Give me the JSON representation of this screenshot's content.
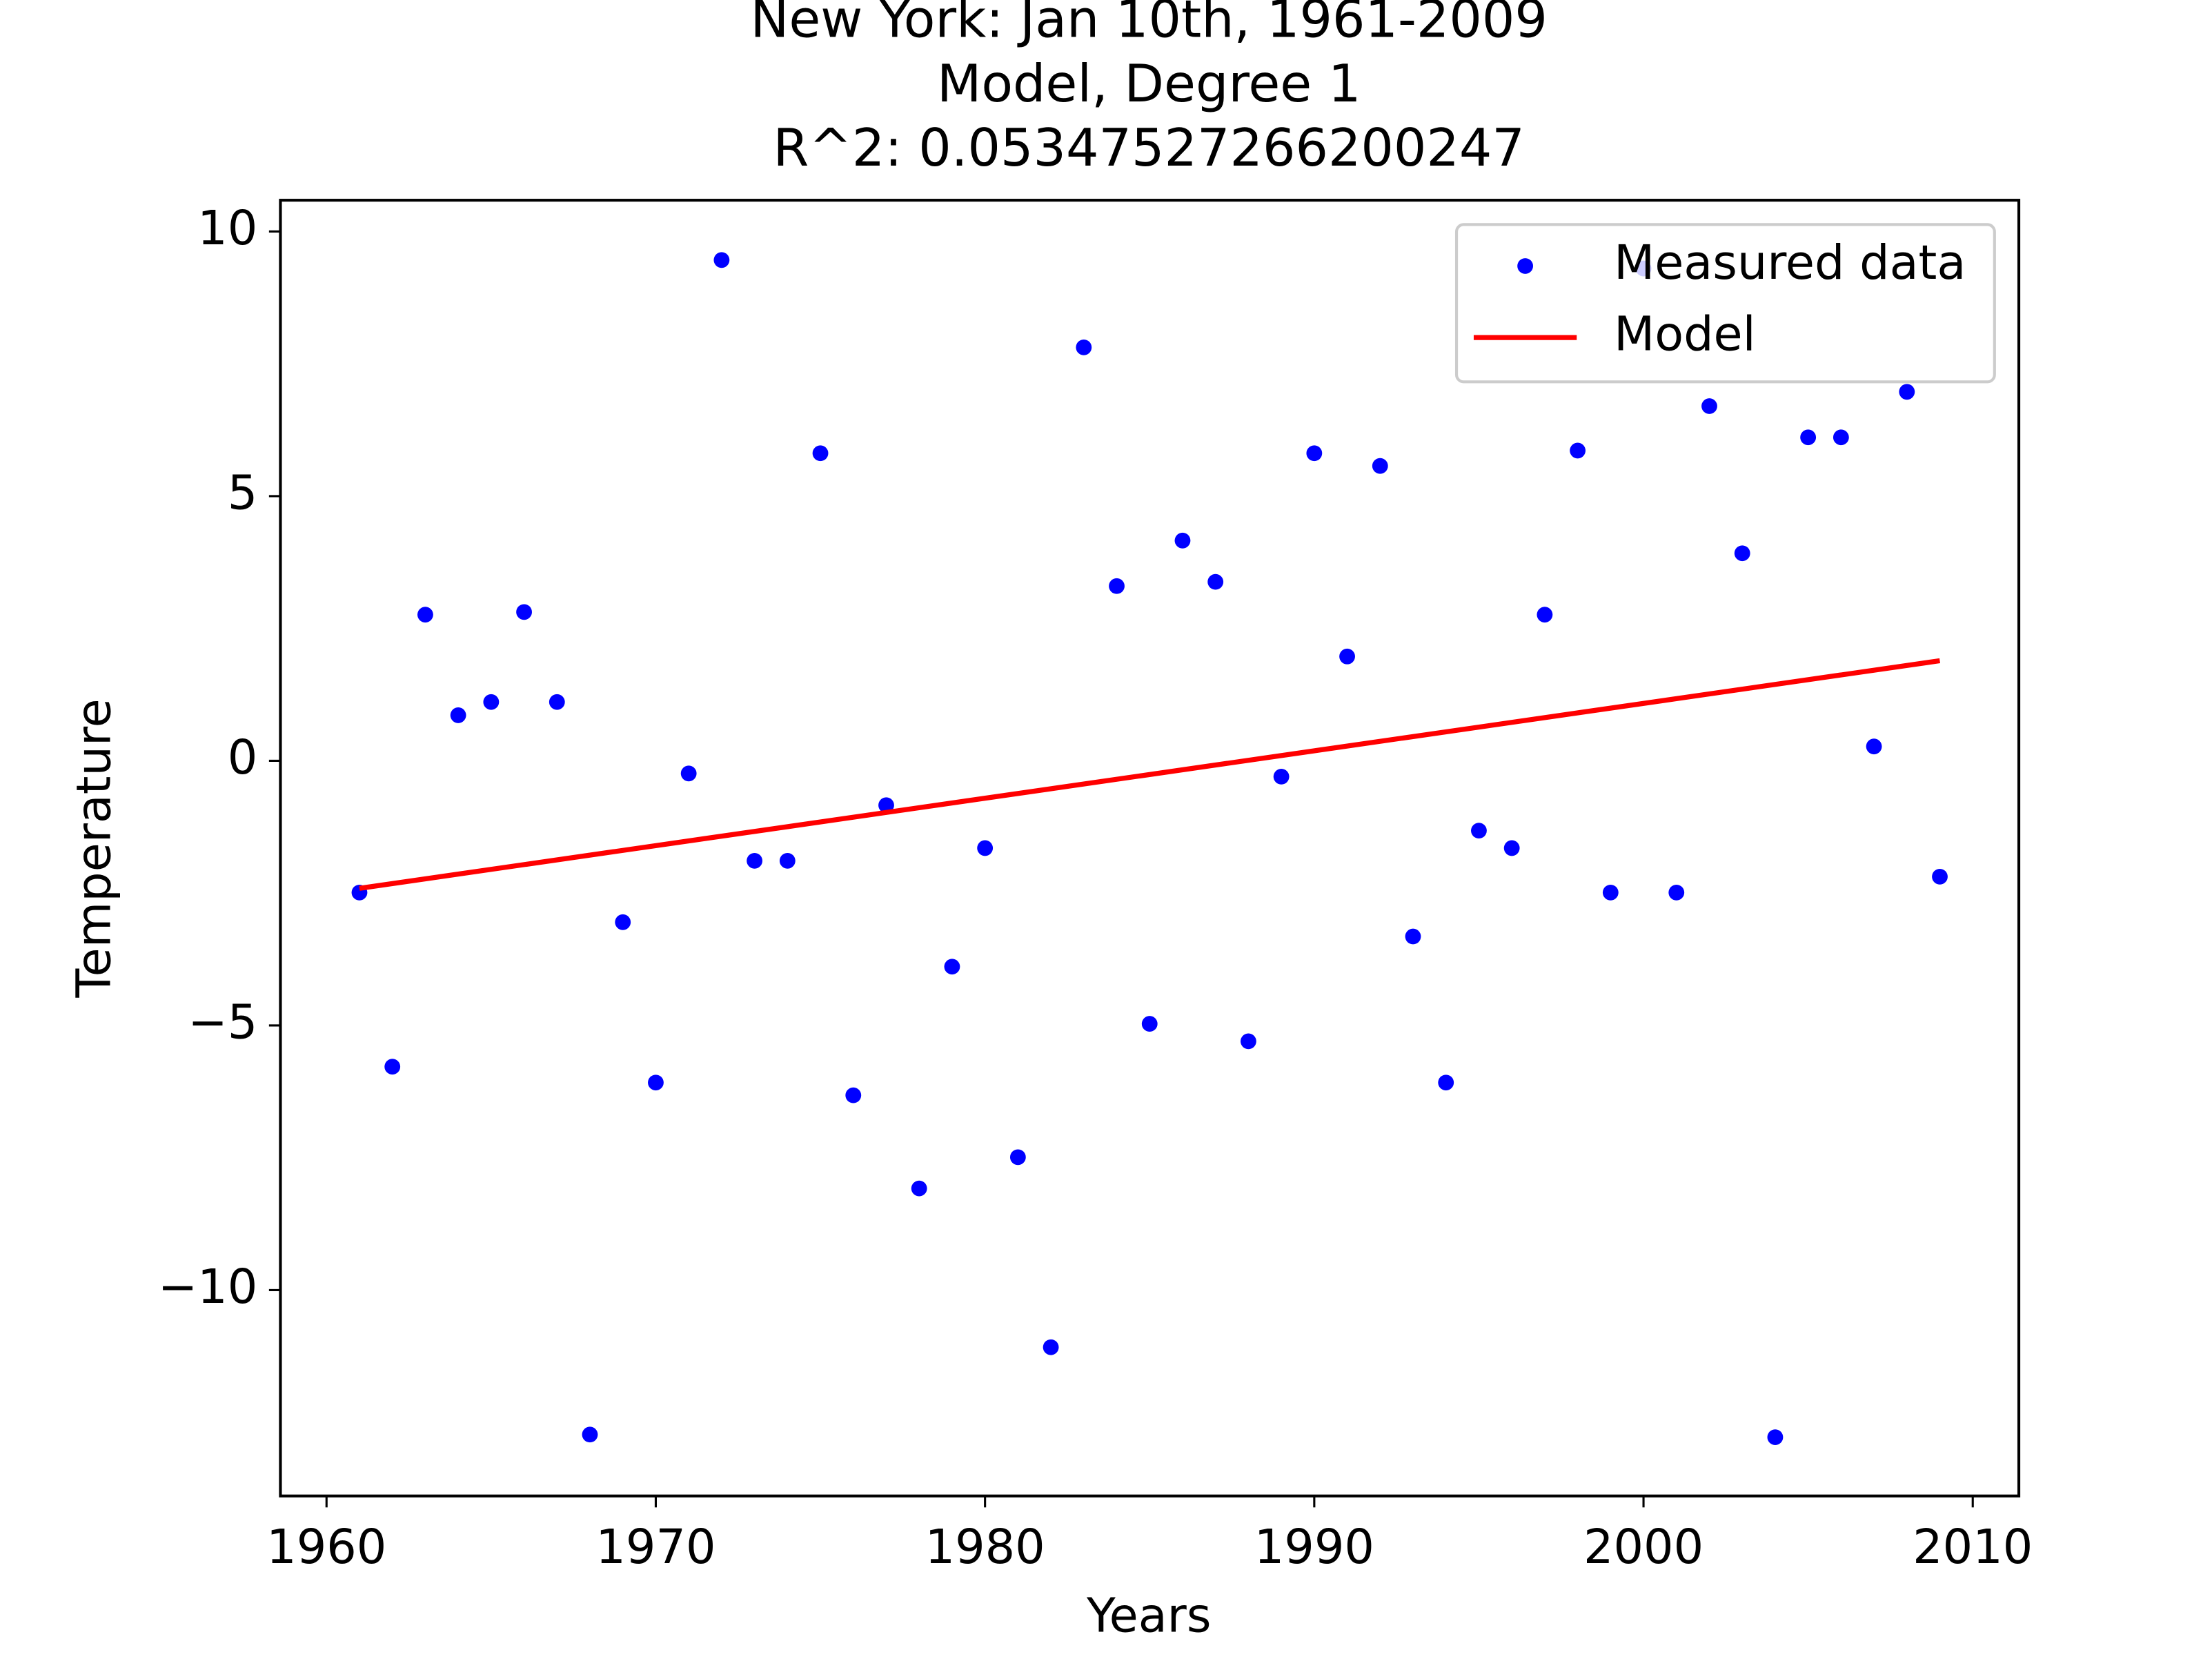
{
  "chart_data": {
    "type": "scatter",
    "title": [
      "New York: Jan 10th, 1961-2009",
      "Model, Degree 1",
      "R^2: 0.05347527266200247"
    ],
    "x_label": "Years",
    "y_label": "Temperature",
    "xlim": [
      1958.6,
      2011.4
    ],
    "ylim": [
      -13.89,
      10.59
    ],
    "xticks": [
      1960,
      1970,
      1980,
      1990,
      2000,
      2010
    ],
    "yticks": [
      -10,
      -5,
      0,
      5,
      10
    ],
    "legend": "upper right",
    "series": [
      {
        "name": "Measured data",
        "color": "#0000ff",
        "kind": "points",
        "x": [
          1961,
          1962,
          1963,
          1964,
          1965,
          1966,
          1967,
          1968,
          1969,
          1970,
          1971,
          1972,
          1973,
          1974,
          1975,
          1976,
          1977,
          1978,
          1979,
          1980,
          1981,
          1982,
          1983,
          1984,
          1985,
          1986,
          1987,
          1988,
          1989,
          1990,
          1991,
          1992,
          1993,
          1994,
          1995,
          1996,
          1997,
          1998,
          1999,
          2000,
          2001,
          2002,
          2003,
          2004,
          2005,
          2006,
          2007,
          2008,
          2009
        ],
        "values": [
          -2.49,
          -5.78,
          2.76,
          0.86,
          1.11,
          2.81,
          1.11,
          -12.73,
          -3.05,
          -6.08,
          -0.24,
          9.46,
          -1.89,
          -1.89,
          5.81,
          -6.32,
          -0.84,
          -8.08,
          -3.89,
          -1.65,
          -7.49,
          -11.08,
          7.81,
          3.3,
          -4.97,
          4.16,
          3.38,
          -5.3,
          -0.3,
          5.81,
          1.97,
          5.57,
          -3.32,
          -6.08,
          -1.32,
          -1.65,
          2.76,
          5.86,
          -2.49,
          9.3,
          -2.49,
          6.7,
          3.92,
          -12.78,
          6.11,
          6.11,
          0.27,
          6.97,
          -2.19
        ]
      },
      {
        "name": "Model",
        "color": "#ff0000",
        "kind": "line",
        "x": [
          1961,
          2009
        ],
        "values": [
          -2.41,
          1.89
        ]
      }
    ]
  }
}
